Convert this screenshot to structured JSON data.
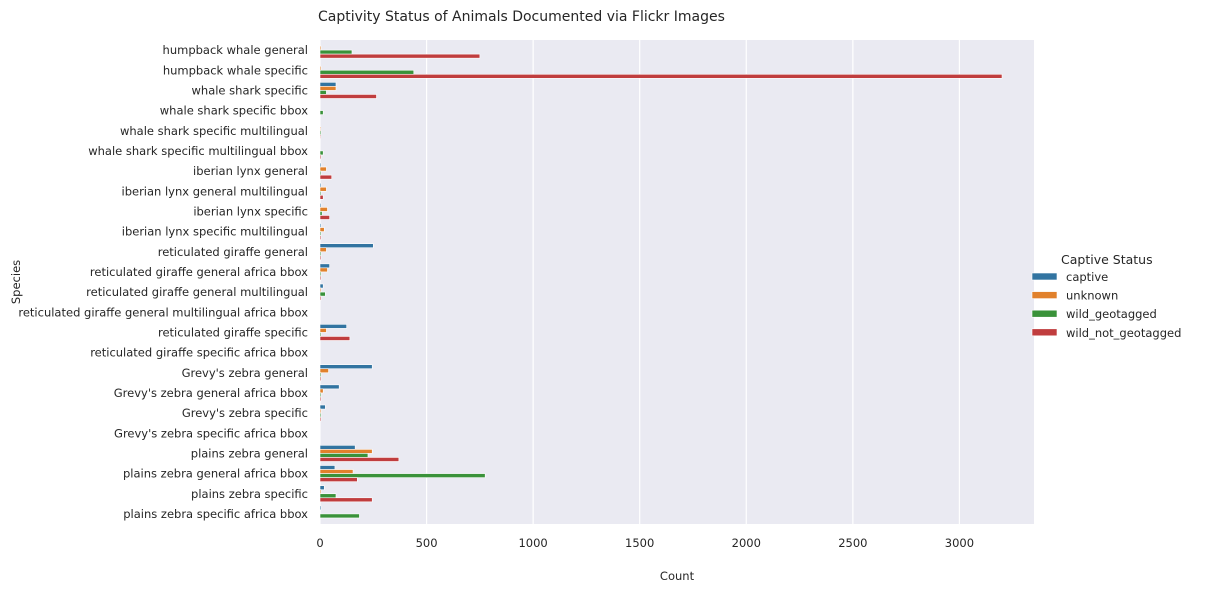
{
  "chart_data": {
    "type": "bar",
    "orientation": "horizontal",
    "title": "Captivity Status of Animals Documented via Flickr Images",
    "xlabel": "Count",
    "ylabel": "Species",
    "xlim": [
      0,
      3350
    ],
    "xticks": [
      0,
      500,
      1000,
      1500,
      2000,
      2500,
      3000
    ],
    "grid": true,
    "legend_title": "Captive Status",
    "legend_position": "right",
    "categories": [
      "humpback whale general",
      "humpback whale specific",
      "whale shark specific",
      "whale shark specific bbox",
      "whale shark specific multilingual",
      "whale shark specific multilingual bbox",
      "iberian lynx general",
      "iberian lynx general multilingual",
      "iberian lynx specific",
      "iberian lynx specific multilingual",
      "reticulated giraffe general",
      "reticulated giraffe general africa bbox",
      "reticulated giraffe general multilingual",
      "reticulated giraffe general multilingual africa bbox",
      "reticulated giraffe specific",
      "reticulated giraffe specific africa bbox",
      "Grevy's zebra general",
      "Grevy's zebra general africa bbox",
      "Grevy's zebra specific",
      "Grevy's zebra specific africa bbox",
      "plains zebra general",
      "plains zebra general africa bbox",
      "plains zebra specific",
      "plains zebra specific africa bbox"
    ],
    "series": [
      {
        "name": "captive",
        "color": "#3274a1",
        "values": [
          0,
          0,
          75,
          0,
          0,
          0,
          5,
          5,
          5,
          5,
          250,
          45,
          15,
          0,
          125,
          0,
          245,
          90,
          25,
          0,
          165,
          70,
          20,
          5
        ]
      },
      {
        "name": "unknown",
        "color": "#e1812c",
        "values": [
          5,
          5,
          75,
          0,
          3,
          0,
          30,
          30,
          35,
          20,
          30,
          35,
          5,
          0,
          30,
          0,
          40,
          15,
          5,
          0,
          245,
          155,
          5,
          0
        ]
      },
      {
        "name": "wild_geotagged",
        "color": "#3a923a",
        "values": [
          150,
          440,
          30,
          15,
          5,
          15,
          5,
          5,
          10,
          5,
          5,
          5,
          25,
          0,
          5,
          0,
          5,
          5,
          5,
          0,
          225,
          775,
          75,
          185
        ]
      },
      {
        "name": "wild_not_geotagged",
        "color": "#c03d3e",
        "values": [
          750,
          3200,
          265,
          0,
          3,
          5,
          55,
          15,
          45,
          5,
          5,
          5,
          5,
          0,
          140,
          0,
          5,
          5,
          5,
          0,
          370,
          175,
          245,
          0
        ]
      }
    ]
  }
}
